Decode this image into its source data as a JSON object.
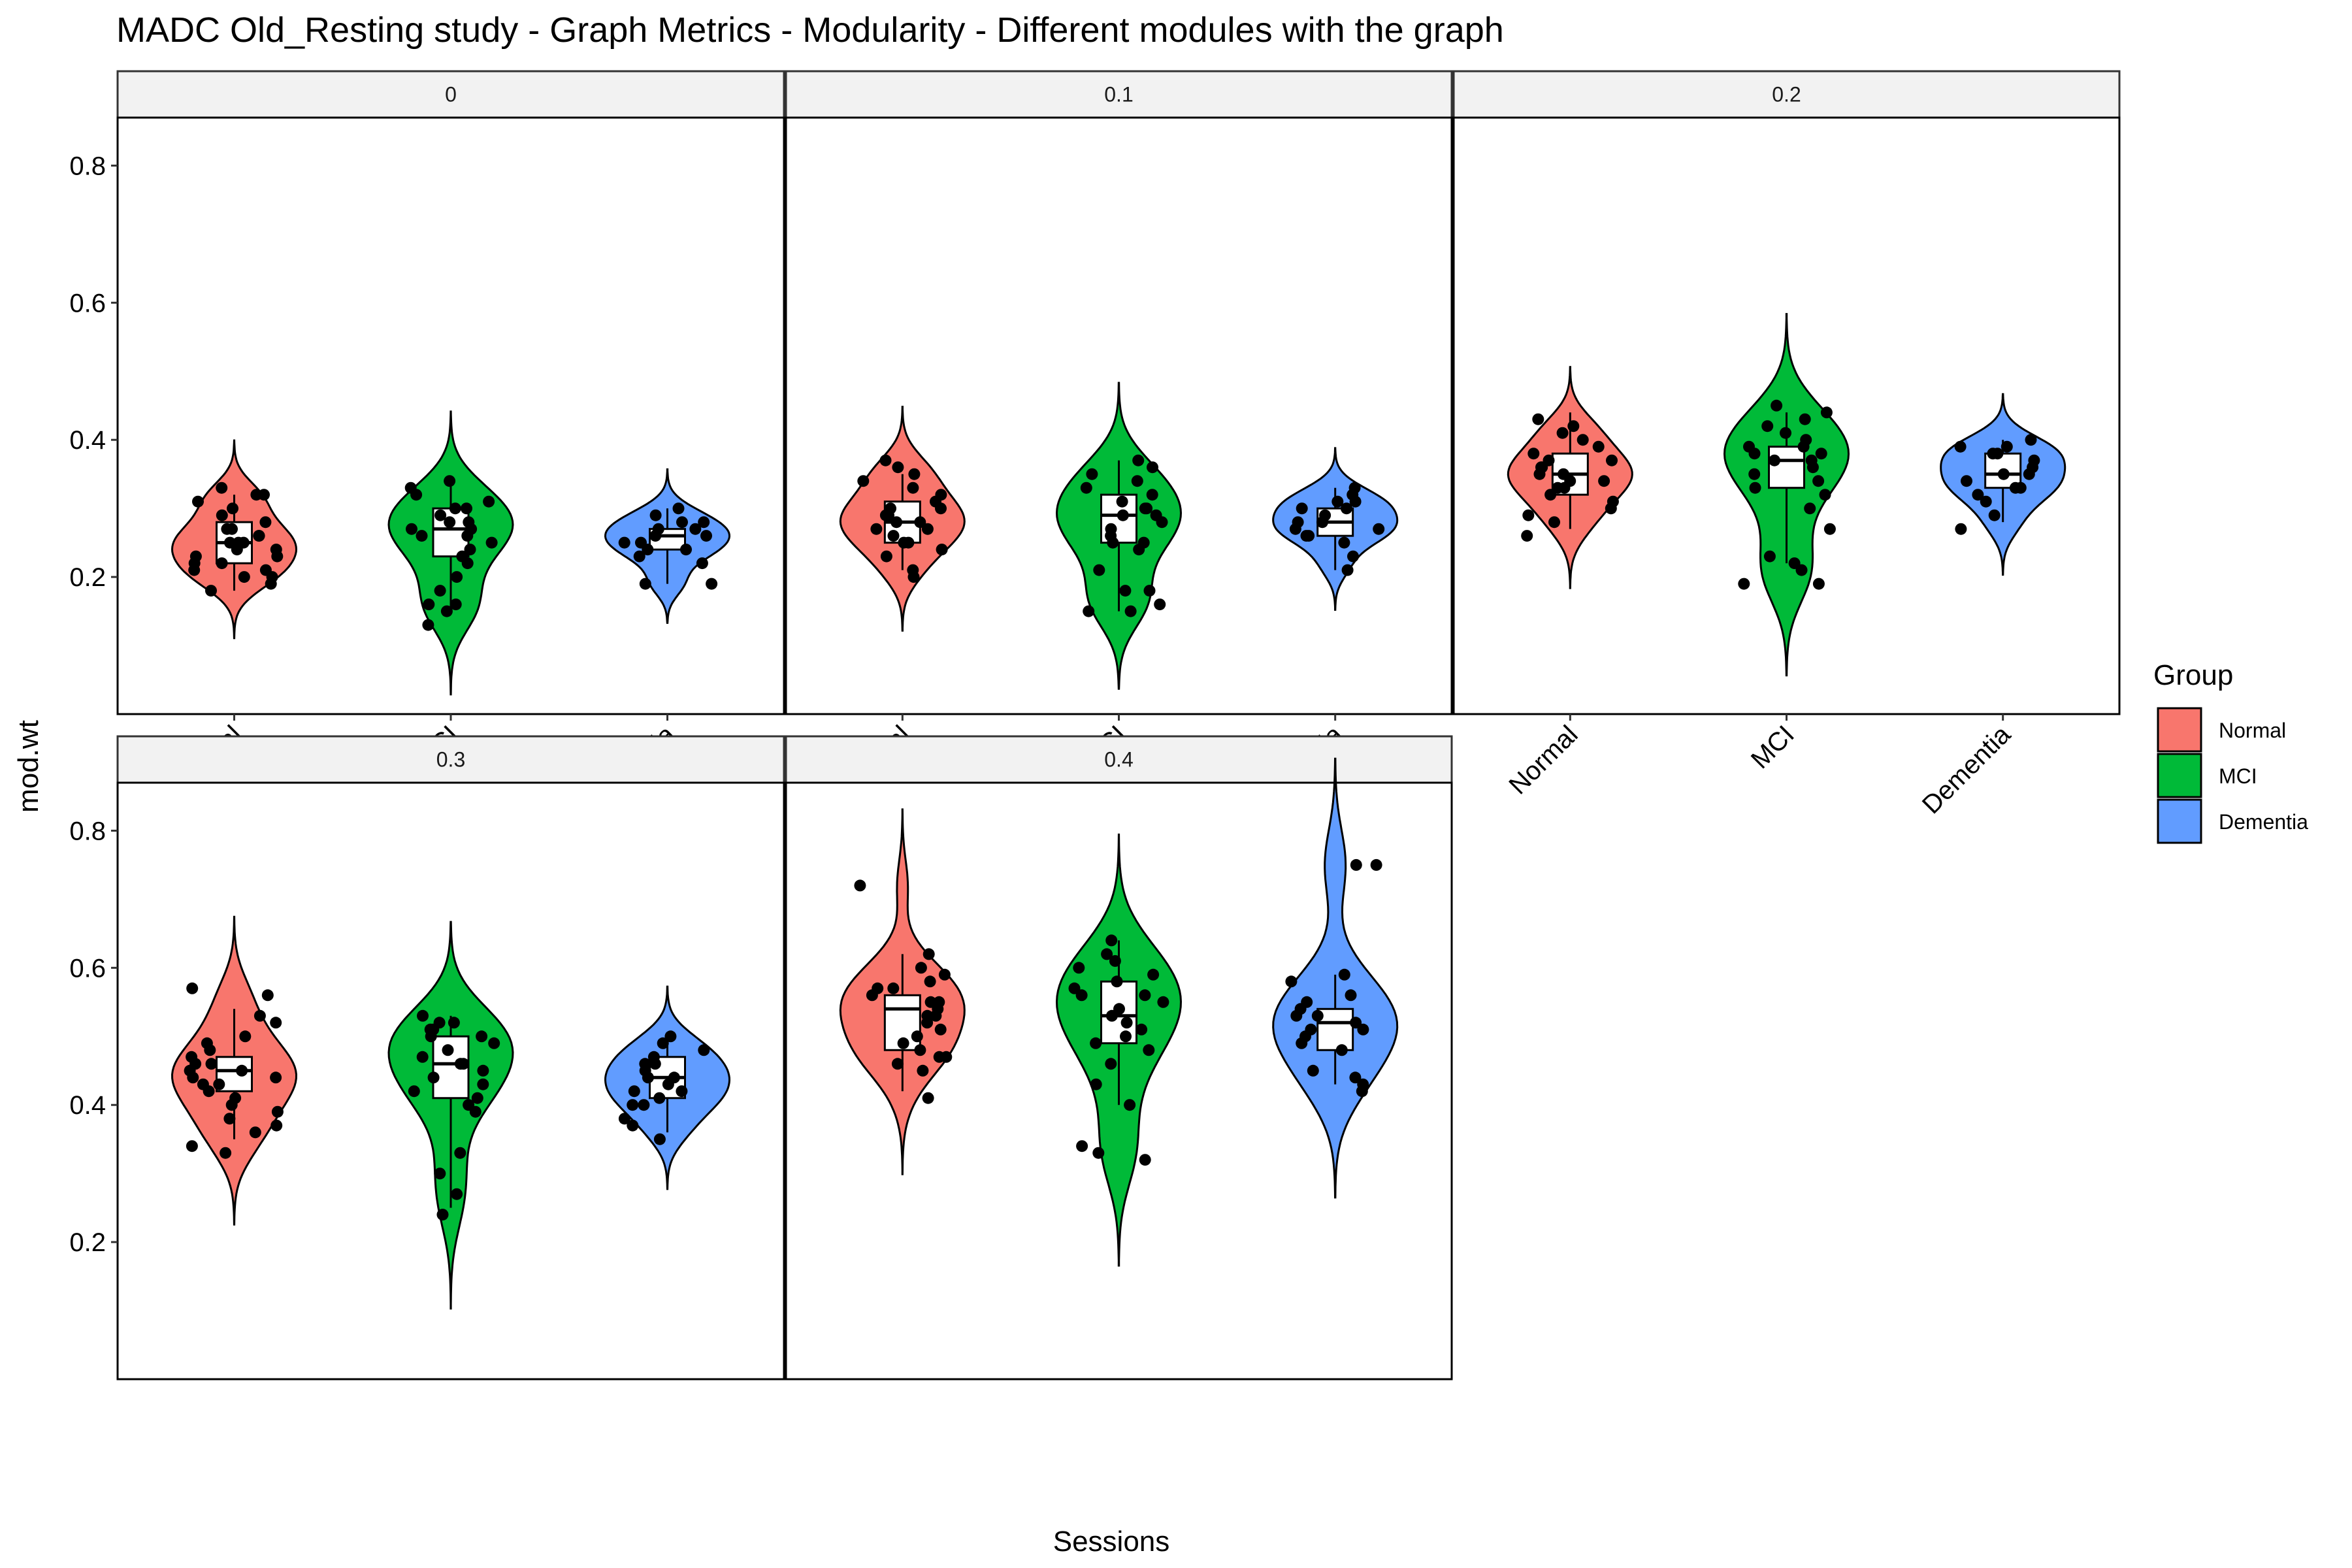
{
  "chart_data": {
    "type": "violin",
    "title": "MADC Old_Resting study - Graph Metrics - Modularity - Different modules with the graph",
    "xlabel": "Sessions",
    "ylabel": "mod.wt",
    "ylim": [
      0,
      0.87
    ],
    "yticks": [
      0.2,
      0.4,
      0.6,
      0.8
    ],
    "categories": [
      "Normal",
      "MCI",
      "Dementia"
    ],
    "grid": false,
    "legend": {
      "title": "Group",
      "position": "right",
      "entries": [
        {
          "name": "Normal",
          "color": "#F8766D"
        },
        {
          "name": "MCI",
          "color": "#00BA38"
        },
        {
          "name": "Dementia",
          "color": "#619CFF"
        }
      ]
    },
    "panels": [
      {
        "label": "0",
        "groups": [
          {
            "category": "Normal",
            "min": 0.18,
            "q1": 0.22,
            "median": 0.25,
            "q3": 0.28,
            "max": 0.32,
            "points": [
              0.18,
              0.19,
              0.2,
              0.2,
              0.21,
              0.21,
              0.22,
              0.22,
              0.23,
              0.23,
              0.24,
              0.24,
              0.25,
              0.25,
              0.25,
              0.26,
              0.26,
              0.27,
              0.27,
              0.28,
              0.29,
              0.3,
              0.31,
              0.32,
              0.32,
              0.33
            ]
          },
          {
            "category": "MCI",
            "min": 0.15,
            "q1": 0.23,
            "median": 0.27,
            "q3": 0.3,
            "max": 0.34,
            "points": [
              0.13,
              0.15,
              0.16,
              0.16,
              0.18,
              0.2,
              0.22,
              0.23,
              0.24,
              0.25,
              0.26,
              0.26,
              0.27,
              0.27,
              0.28,
              0.28,
              0.29,
              0.3,
              0.3,
              0.31,
              0.32,
              0.33,
              0.34
            ]
          },
          {
            "category": "Dementia",
            "min": 0.19,
            "q1": 0.24,
            "median": 0.26,
            "q3": 0.27,
            "max": 0.3,
            "points": [
              0.19,
              0.19,
              0.22,
              0.23,
              0.24,
              0.24,
              0.25,
              0.25,
              0.26,
              0.26,
              0.27,
              0.27,
              0.28,
              0.28,
              0.29,
              0.3
            ]
          }
        ]
      },
      {
        "label": "0.1",
        "groups": [
          {
            "category": "Normal",
            "min": 0.21,
            "q1": 0.25,
            "median": 0.28,
            "q3": 0.31,
            "max": 0.35,
            "points": [
              0.2,
              0.21,
              0.23,
              0.24,
              0.25,
              0.25,
              0.26,
              0.27,
              0.27,
              0.28,
              0.28,
              0.29,
              0.29,
              0.3,
              0.3,
              0.31,
              0.32,
              0.33,
              0.34,
              0.35,
              0.36,
              0.37
            ]
          },
          {
            "category": "MCI",
            "min": 0.15,
            "q1": 0.25,
            "median": 0.29,
            "q3": 0.32,
            "max": 0.37,
            "points": [
              0.15,
              0.15,
              0.16,
              0.18,
              0.18,
              0.21,
              0.24,
              0.25,
              0.25,
              0.26,
              0.27,
              0.28,
              0.29,
              0.29,
              0.3,
              0.3,
              0.31,
              0.32,
              0.33,
              0.34,
              0.35,
              0.36,
              0.37
            ]
          },
          {
            "category": "Dementia",
            "min": 0.21,
            "q1": 0.26,
            "median": 0.28,
            "q3": 0.3,
            "max": 0.33,
            "points": [
              0.21,
              0.23,
              0.25,
              0.26,
              0.26,
              0.27,
              0.27,
              0.28,
              0.28,
              0.29,
              0.3,
              0.3,
              0.31,
              0.31,
              0.32,
              0.33
            ]
          }
        ]
      },
      {
        "label": "0.2",
        "groups": [
          {
            "category": "Normal",
            "min": 0.27,
            "q1": 0.32,
            "median": 0.35,
            "q3": 0.38,
            "max": 0.44,
            "points": [
              0.26,
              0.28,
              0.29,
              0.3,
              0.31,
              0.32,
              0.33,
              0.33,
              0.34,
              0.34,
              0.35,
              0.35,
              0.36,
              0.36,
              0.37,
              0.37,
              0.38,
              0.39,
              0.4,
              0.41,
              0.42,
              0.43
            ]
          },
          {
            "category": "MCI",
            "min": 0.22,
            "q1": 0.33,
            "median": 0.37,
            "q3": 0.39,
            "max": 0.44,
            "points": [
              0.19,
              0.19,
              0.21,
              0.22,
              0.23,
              0.27,
              0.3,
              0.32,
              0.33,
              0.34,
              0.35,
              0.36,
              0.37,
              0.37,
              0.38,
              0.38,
              0.39,
              0.39,
              0.4,
              0.41,
              0.42,
              0.43,
              0.44,
              0.45
            ]
          },
          {
            "category": "Dementia",
            "min": 0.28,
            "q1": 0.33,
            "median": 0.35,
            "q3": 0.38,
            "max": 0.4,
            "points": [
              0.27,
              0.29,
              0.31,
              0.32,
              0.33,
              0.33,
              0.34,
              0.35,
              0.35,
              0.36,
              0.37,
              0.38,
              0.38,
              0.39,
              0.39,
              0.4
            ]
          }
        ]
      },
      {
        "label": "0.3",
        "groups": [
          {
            "category": "Normal",
            "min": 0.35,
            "q1": 0.42,
            "median": 0.45,
            "q3": 0.47,
            "max": 0.54,
            "points": [
              0.33,
              0.34,
              0.36,
              0.37,
              0.38,
              0.39,
              0.4,
              0.41,
              0.42,
              0.43,
              0.43,
              0.44,
              0.44,
              0.45,
              0.45,
              0.46,
              0.46,
              0.47,
              0.48,
              0.49,
              0.5,
              0.52,
              0.53,
              0.56,
              0.57
            ]
          },
          {
            "category": "MCI",
            "min": 0.25,
            "q1": 0.41,
            "median": 0.46,
            "q3": 0.5,
            "max": 0.53,
            "points": [
              0.24,
              0.27,
              0.3,
              0.33,
              0.39,
              0.4,
              0.41,
              0.42,
              0.43,
              0.44,
              0.45,
              0.46,
              0.46,
              0.47,
              0.48,
              0.49,
              0.5,
              0.5,
              0.51,
              0.51,
              0.52,
              0.52,
              0.53
            ]
          },
          {
            "category": "Dementia",
            "min": 0.36,
            "q1": 0.41,
            "median": 0.44,
            "q3": 0.47,
            "max": 0.49,
            "points": [
              0.35,
              0.37,
              0.38,
              0.4,
              0.4,
              0.41,
              0.42,
              0.42,
              0.43,
              0.44,
              0.44,
              0.45,
              0.46,
              0.46,
              0.47,
              0.48,
              0.49,
              0.5
            ]
          }
        ]
      },
      {
        "label": "0.4",
        "groups": [
          {
            "category": "Normal",
            "min": 0.42,
            "q1": 0.48,
            "median": 0.54,
            "q3": 0.56,
            "max": 0.62,
            "points": [
              0.41,
              0.45,
              0.46,
              0.47,
              0.47,
              0.48,
              0.49,
              0.5,
              0.51,
              0.52,
              0.53,
              0.53,
              0.54,
              0.55,
              0.55,
              0.56,
              0.57,
              0.57,
              0.58,
              0.59,
              0.6,
              0.62,
              0.72
            ]
          },
          {
            "category": "MCI",
            "min": 0.4,
            "q1": 0.49,
            "median": 0.53,
            "q3": 0.58,
            "max": 0.64,
            "points": [
              0.32,
              0.33,
              0.34,
              0.4,
              0.43,
              0.46,
              0.48,
              0.49,
              0.5,
              0.51,
              0.52,
              0.53,
              0.54,
              0.55,
              0.56,
              0.56,
              0.57,
              0.58,
              0.59,
              0.6,
              0.61,
              0.62,
              0.64
            ]
          },
          {
            "category": "Dementia",
            "min": 0.43,
            "q1": 0.48,
            "median": 0.52,
            "q3": 0.54,
            "max": 0.59,
            "points": [
              0.42,
              0.43,
              0.44,
              0.45,
              0.48,
              0.49,
              0.5,
              0.51,
              0.51,
              0.52,
              0.53,
              0.53,
              0.54,
              0.55,
              0.56,
              0.58,
              0.59,
              0.75,
              0.75
            ]
          }
        ]
      }
    ]
  }
}
